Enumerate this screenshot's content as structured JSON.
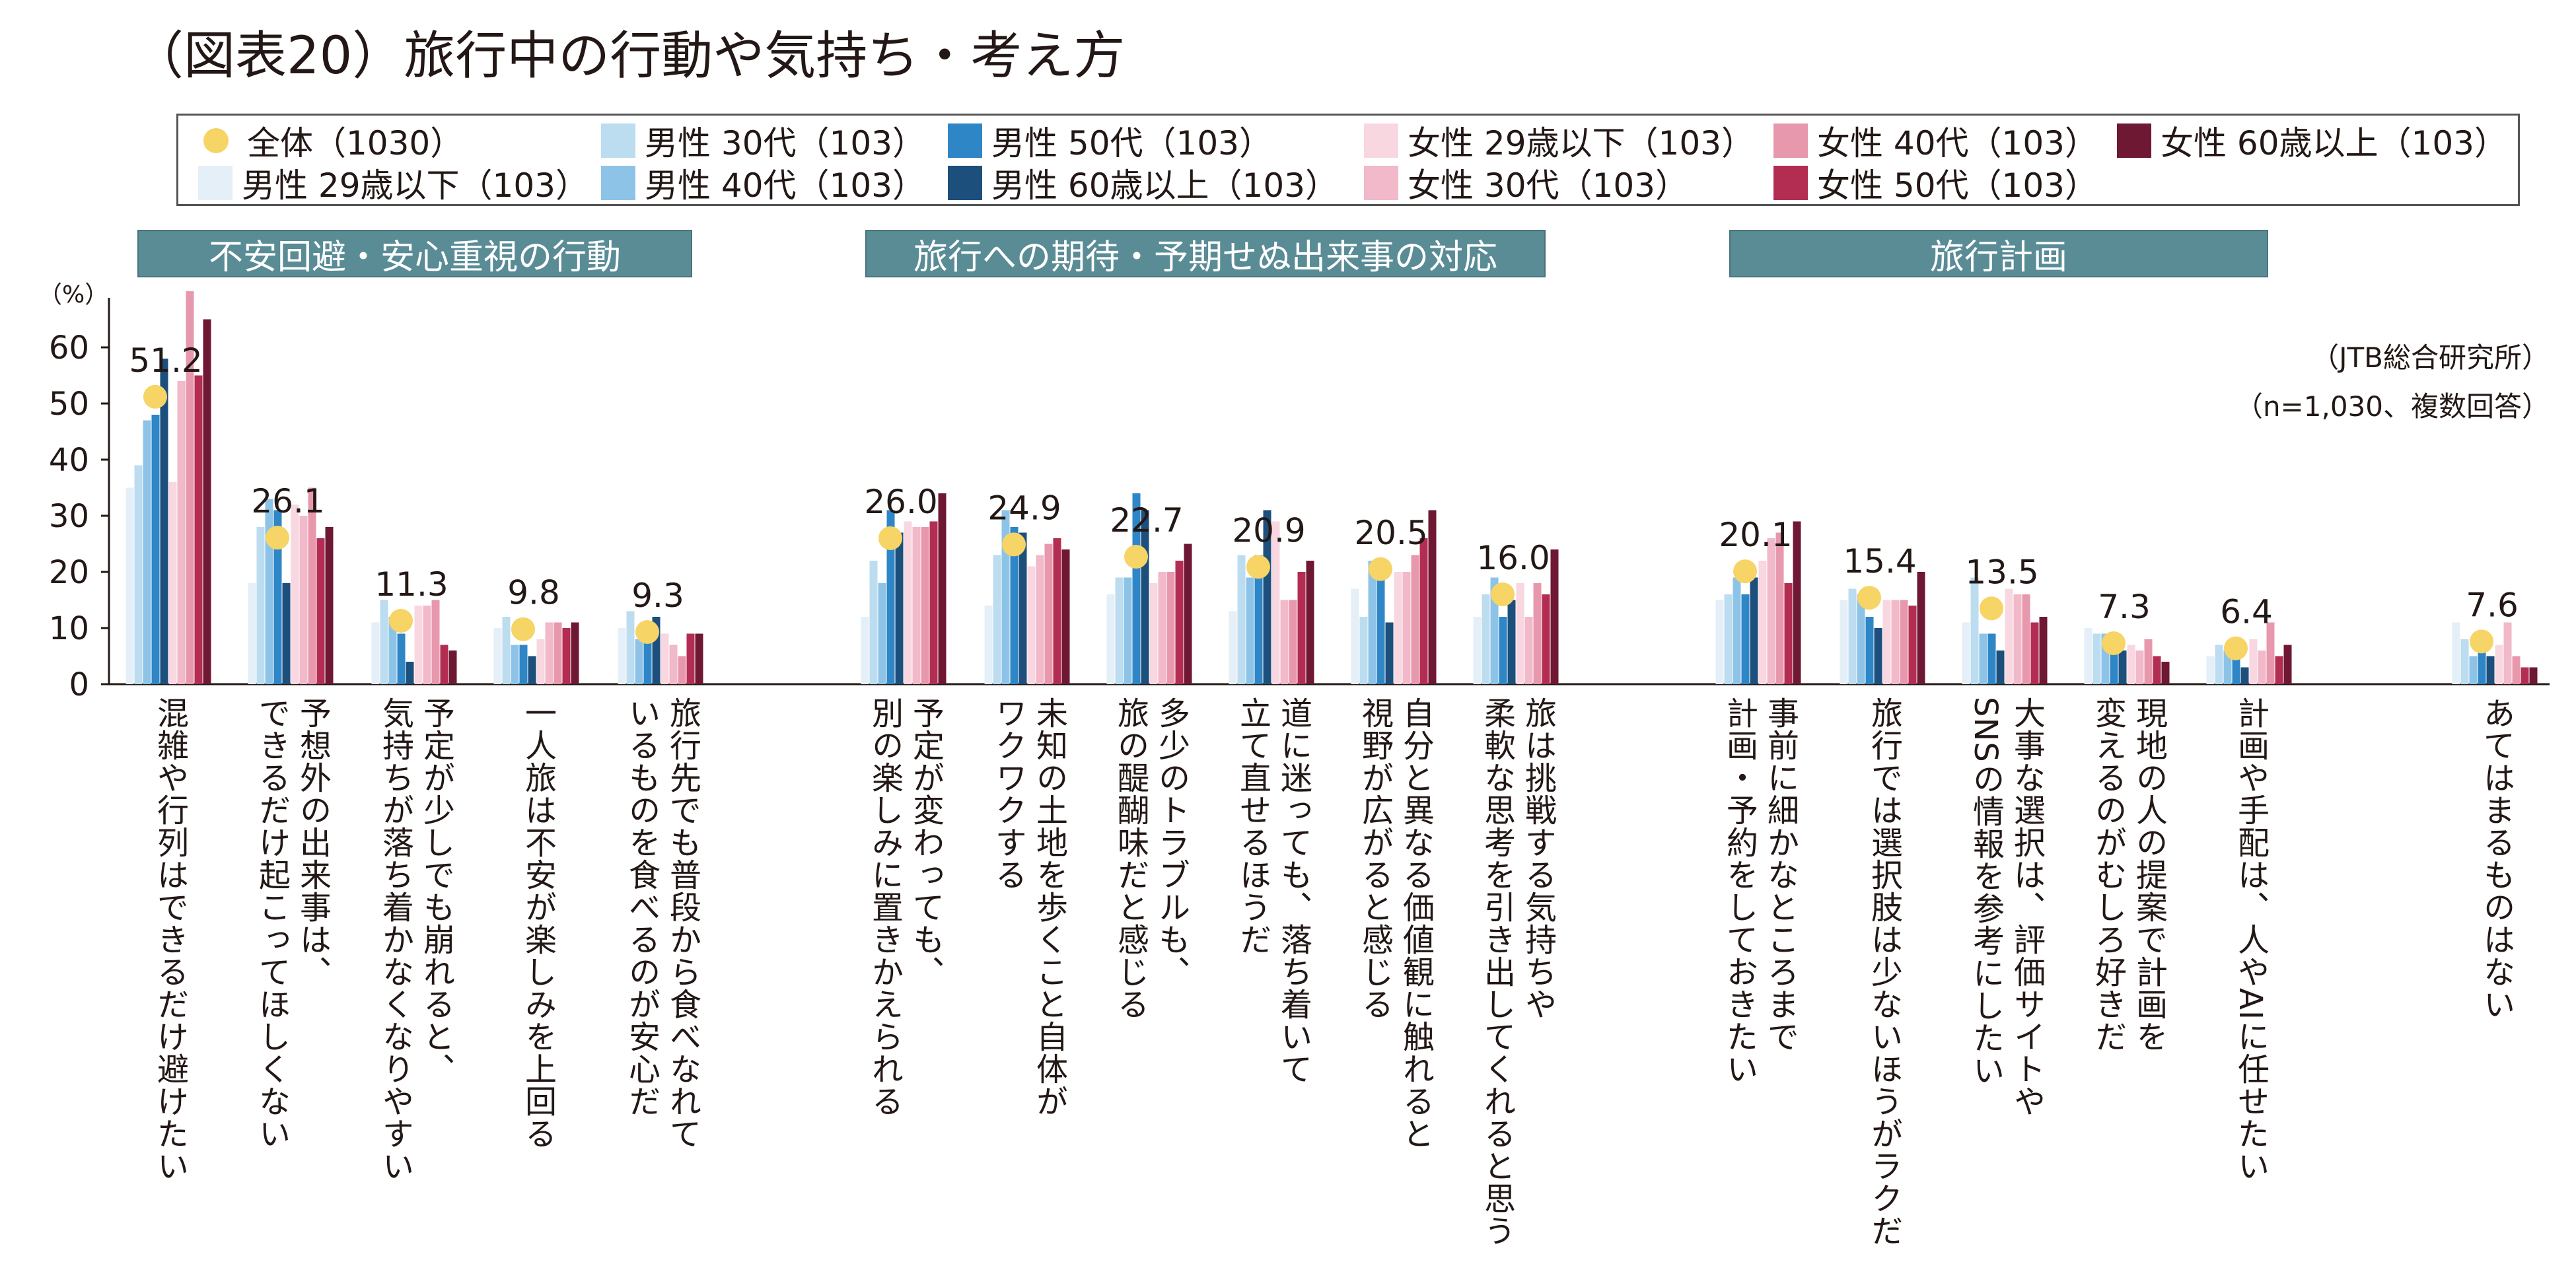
{
  "title": "（図表20）旅行中の行動や気持ち・考え方",
  "source_note": "（JTB総合研究所）",
  "sample_note": "（n=1,030、複数回答）",
  "unit_label": "（%）",
  "group_labels": [
    "不安回避・安心重視の行動",
    "旅行への期待・予期せぬ出来事の対応",
    "旅行計画"
  ],
  "legend": [
    {
      "label": "全体（1030）",
      "color": "#f6d465",
      "marker": "dot"
    },
    {
      "label": "男性 29歳以下（103）",
      "color": "#e4eff8",
      "marker": "square"
    },
    {
      "label": "男性 30代（103）",
      "color": "#bcdcf0",
      "marker": "square"
    },
    {
      "label": "男性 40代（103）",
      "color": "#8ec3e8",
      "marker": "square"
    },
    {
      "label": "男性 50代（103）",
      "color": "#2e86c6",
      "marker": "square"
    },
    {
      "label": "男性 60歳以上（103）",
      "color": "#1c4f7c",
      "marker": "square"
    },
    {
      "label": "女性 29歳以下（103）",
      "color": "#f8d7e1",
      "marker": "square"
    },
    {
      "label": "女性 30代（103）",
      "color": "#f1b9c9",
      "marker": "square"
    },
    {
      "label": "女性 40代（103）",
      "color": "#e898ad",
      "marker": "square"
    },
    {
      "label": "女性 50代（103）",
      "color": "#b32d52",
      "marker": "square"
    },
    {
      "label": "女性 60歳以上（103）",
      "color": "#6e1834",
      "marker": "square"
    }
  ],
  "chart_data": {
    "type": "bar",
    "ylabel": "（%）",
    "ylim": [
      0,
      70
    ],
    "yticks": [
      0,
      10,
      20,
      30,
      40,
      50,
      60
    ],
    "categories": [
      "混雑や行列はできるだけ避けたい",
      "予想外の出来事は、\nできるだけ起こってほしくない",
      "予定が少しでも崩れると、\n気持ちが落ち着かなくなりやすい",
      "一人旅は不安が楽しみを上回る",
      "旅行先でも普段から食べなれて\nいるものを食べるのが安心だ",
      "予定が変わっても、\n別の楽しみに置きかえられる",
      "未知の土地を歩くこと自体が\nワクワクする",
      "多少のトラブルも、\n旅の醍醐味だと感じる",
      "道に迷っても、落ち着いて\n立て直せるほうだ",
      "自分と異なる価値観に触れると\n視野が広がると感じる",
      "旅は挑戦する気持ちや\n柔軟な思考を引き出してくれると思う",
      "事前に細かなところまで\n計画・予約をしておきたい",
      "旅行では選択肢は少ないほうがラクだ",
      "大事な選択は、評価サイトや\nSNSの情報を参考にしたい",
      "現地の人の提案で計画を\n変えるのがむしろ好きだ",
      "計画や手配は、人やAIに任せたい",
      "あてはまるものはない"
    ],
    "overall": {
      "name": "全体（1030）",
      "values": [
        51.2,
        26.1,
        11.3,
        9.8,
        9.3,
        26.0,
        24.9,
        22.7,
        20.9,
        20.5,
        16.0,
        20.1,
        15.4,
        13.5,
        7.3,
        6.4,
        7.6
      ],
      "labels": [
        "51.2",
        "26.1",
        "11.3",
        "9.8",
        "9.3",
        "26.0",
        "24.9",
        "22.7",
        "20.9",
        "20.5",
        "16.0",
        "20.1",
        "15.4",
        "13.5",
        "7.3",
        "6.4",
        "7.6"
      ]
    },
    "series": [
      {
        "name": "男性 29歳以下（103）",
        "values": [
          35,
          18,
          11,
          10,
          10,
          12,
          14,
          16,
          13,
          17,
          12,
          15,
          15,
          11,
          10,
          5,
          11
        ]
      },
      {
        "name": "男性 30代（103）",
        "values": [
          39,
          28,
          15,
          12,
          13,
          22,
          23,
          19,
          23,
          12,
          16,
          16,
          17,
          19,
          9,
          7,
          8
        ]
      },
      {
        "name": "男性 40代（103）",
        "values": [
          47,
          33,
          12,
          7,
          8,
          18,
          31,
          19,
          19,
          22,
          19,
          19,
          16,
          9,
          9,
          6,
          5
        ]
      },
      {
        "name": "男性 50代（103）",
        "values": [
          48,
          31,
          9,
          7,
          9,
          31,
          28,
          34,
          23,
          21,
          12,
          16,
          12,
          9,
          8,
          5,
          6
        ]
      },
      {
        "name": "男性 60歳以上（103）",
        "values": [
          58,
          18,
          4,
          5,
          12,
          27,
          27,
          31,
          31,
          11,
          15,
          19,
          10,
          6,
          6,
          3,
          5
        ]
      },
      {
        "name": "女性 29歳以下（103）",
        "values": [
          36,
          32,
          14,
          8,
          9,
          29,
          21,
          18,
          29,
          20,
          18,
          22,
          15,
          17,
          7,
          8,
          7
        ]
      },
      {
        "name": "女性 30代（103）",
        "values": [
          54,
          30,
          14,
          11,
          7,
          28,
          23,
          20,
          15,
          20,
          12,
          26,
          15,
          16,
          6,
          6,
          11
        ]
      },
      {
        "name": "女性 40代（103）",
        "values": [
          70,
          35,
          15,
          11,
          5,
          28,
          25,
          20,
          15,
          23,
          18,
          27,
          15,
          16,
          8,
          11,
          5
        ]
      },
      {
        "name": "女性 50代（103）",
        "values": [
          55,
          26,
          7,
          10,
          9,
          29,
          26,
          22,
          20,
          26,
          16,
          18,
          14,
          11,
          5,
          5,
          3
        ]
      },
      {
        "name": "女性 60歳以上（103）",
        "values": [
          65,
          28,
          6,
          11,
          9,
          34,
          24,
          25,
          22,
          31,
          24,
          29,
          20,
          12,
          4,
          7,
          3
        ]
      }
    ]
  }
}
